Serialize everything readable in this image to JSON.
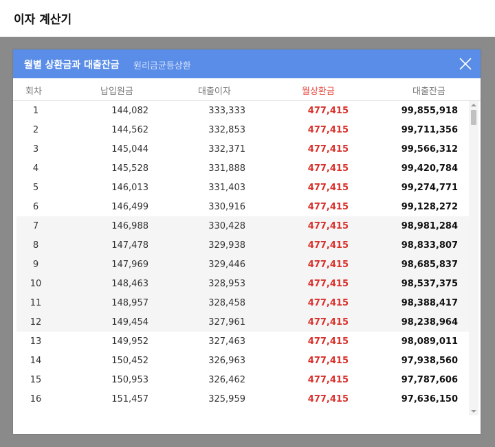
{
  "app": {
    "title": "이자 계산기"
  },
  "modal": {
    "title": "월별 상환금과 대출잔금",
    "subtitle": "원리금균등상환",
    "close_icon": "close-icon"
  },
  "table": {
    "headers": {
      "round": "회차",
      "principal": "납입원금",
      "interest": "대출이자",
      "monthly": "월상환금",
      "balance": "대출잔금"
    },
    "rows": [
      {
        "round": "1",
        "principal": "144,082",
        "interest": "333,333",
        "monthly": "477,415",
        "balance": "99,855,918"
      },
      {
        "round": "2",
        "principal": "144,562",
        "interest": "332,853",
        "monthly": "477,415",
        "balance": "99,711,356"
      },
      {
        "round": "3",
        "principal": "145,044",
        "interest": "332,371",
        "monthly": "477,415",
        "balance": "99,566,312"
      },
      {
        "round": "4",
        "principal": "145,528",
        "interest": "331,888",
        "monthly": "477,415",
        "balance": "99,420,784"
      },
      {
        "round": "5",
        "principal": "146,013",
        "interest": "331,403",
        "monthly": "477,415",
        "balance": "99,274,771"
      },
      {
        "round": "6",
        "principal": "146,499",
        "interest": "330,916",
        "monthly": "477,415",
        "balance": "99,128,272"
      },
      {
        "round": "7",
        "principal": "146,988",
        "interest": "330,428",
        "monthly": "477,415",
        "balance": "98,981,284"
      },
      {
        "round": "8",
        "principal": "147,478",
        "interest": "329,938",
        "monthly": "477,415",
        "balance": "98,833,807"
      },
      {
        "round": "9",
        "principal": "147,969",
        "interest": "329,446",
        "monthly": "477,415",
        "balance": "98,685,837"
      },
      {
        "round": "10",
        "principal": "148,463",
        "interest": "328,953",
        "monthly": "477,415",
        "balance": "98,537,375"
      },
      {
        "round": "11",
        "principal": "148,957",
        "interest": "328,458",
        "monthly": "477,415",
        "balance": "98,388,417"
      },
      {
        "round": "12",
        "principal": "149,454",
        "interest": "327,961",
        "monthly": "477,415",
        "balance": "98,238,964"
      },
      {
        "round": "13",
        "principal": "149,952",
        "interest": "327,463",
        "monthly": "477,415",
        "balance": "98,089,011"
      },
      {
        "round": "14",
        "principal": "150,452",
        "interest": "326,963",
        "monthly": "477,415",
        "balance": "97,938,560"
      },
      {
        "round": "15",
        "principal": "150,953",
        "interest": "326,462",
        "monthly": "477,415",
        "balance": "97,787,606"
      },
      {
        "round": "16",
        "principal": "151,457",
        "interest": "325,959",
        "monthly": "477,415",
        "balance": "97,636,150"
      }
    ]
  },
  "colors": {
    "header_blue": "#5a8de8",
    "monthly_red": "#d9302b",
    "overlay_gray": "#8a8a8a"
  }
}
